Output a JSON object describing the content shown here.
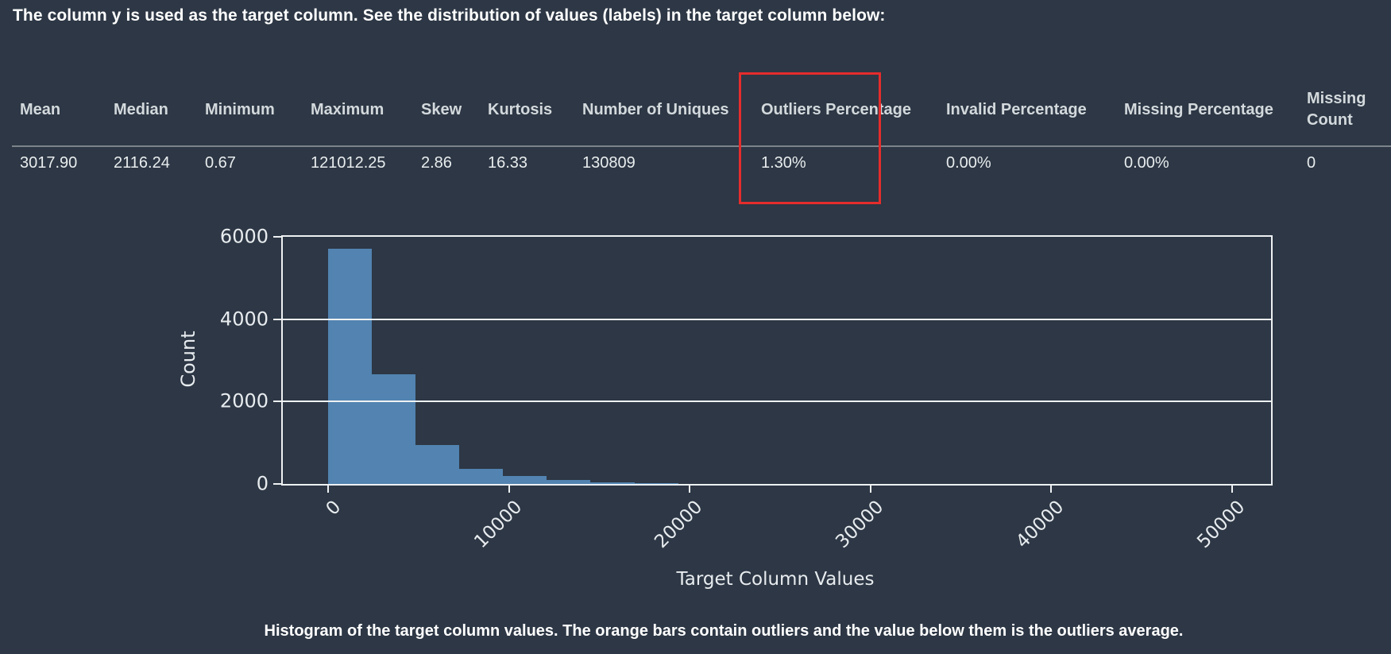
{
  "page": {
    "heading_prefix": "The column ",
    "heading_target": "y",
    "heading_suffix": " is used as the target column. See the distribution of values (labels) in the target column below:",
    "caption": "Histogram of the target column values. The orange bars contain outliers and the value below them is the outliers average."
  },
  "stats_table": {
    "highlight_color": "#e52c2c",
    "columns": [
      {
        "key": "mean",
        "label": "Mean",
        "value": "3017.90"
      },
      {
        "key": "median",
        "label": "Median",
        "value": "2116.24"
      },
      {
        "key": "minimum",
        "label": "Minimum",
        "value": "0.67"
      },
      {
        "key": "maximum",
        "label": "Maximum",
        "value": "121012.25"
      },
      {
        "key": "skew",
        "label": "Skew",
        "value": "2.86"
      },
      {
        "key": "kurtosis",
        "label": "Kurtosis",
        "value": "16.33"
      },
      {
        "key": "number-of-uniques",
        "label": "Number of Uniques",
        "value": "130809"
      },
      {
        "key": "outliers-percentage",
        "label": "Outliers Percentage",
        "value": "1.30%",
        "highlighted": true
      },
      {
        "key": "invalid-percentage",
        "label": "Invalid Percentage",
        "value": "0.00%"
      },
      {
        "key": "missing-percentage",
        "label": "Missing Percentage",
        "value": "0.00%"
      },
      {
        "key": "missing-count",
        "label": "Missing Count",
        "value": "0"
      }
    ]
  },
  "chart_data": {
    "type": "bar",
    "subtype": "histogram",
    "title": "",
    "xlabel": "Target Column Values",
    "ylabel": "Count",
    "bar_color": "#5283b1",
    "axis_color": "#eef1f3",
    "grid": "horizontal",
    "legend": "none",
    "xlim": [
      -2500,
      52150
    ],
    "ylim": [
      0,
      6000
    ],
    "x_ticks": [
      0,
      10000,
      20000,
      30000,
      40000,
      50000
    ],
    "y_ticks": [
      0,
      2000,
      4000,
      6000
    ],
    "bin_width": 2420,
    "bins": [
      {
        "start": 0,
        "count": 5710
      },
      {
        "start": 2420,
        "count": 2660
      },
      {
        "start": 4840,
        "count": 950
      },
      {
        "start": 7260,
        "count": 375
      },
      {
        "start": 9680,
        "count": 190
      },
      {
        "start": 12100,
        "count": 100
      },
      {
        "start": 14520,
        "count": 45
      },
      {
        "start": 16940,
        "count": 20
      }
    ]
  }
}
